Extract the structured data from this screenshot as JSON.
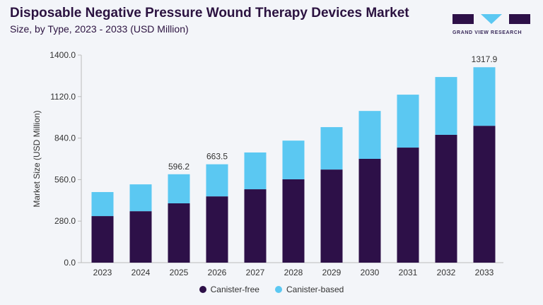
{
  "header": {
    "title": "Disposable Negative Pressure Wound Therapy Devices Market",
    "subtitle": "Size, by Type, 2023 - 2033 (USD Million)"
  },
  "logo": {
    "text": "GRAND VIEW RESEARCH"
  },
  "chart_data": {
    "type": "bar",
    "stacked": true,
    "title": "Disposable Negative Pressure Wound Therapy Devices Market",
    "subtitle": "Size, by Type, 2023 - 2033 (USD Million)",
    "xlabel": "",
    "ylabel": "Market Size (USD Million)",
    "ylim": [
      0,
      1400
    ],
    "yticks": [
      "0.0",
      "280.0",
      "560.0",
      "840.0",
      "1120.0",
      "1400.0"
    ],
    "categories": [
      "2023",
      "2024",
      "2025",
      "2026",
      "2027",
      "2028",
      "2029",
      "2030",
      "2031",
      "2032",
      "2033"
    ],
    "series": [
      {
        "name": "Canister-free",
        "color": "#2d1048",
        "values": [
          314,
          347,
          400,
          447,
          495,
          562,
          628,
          700,
          776,
          862,
          923
        ]
      },
      {
        "name": "Canister-based",
        "color": "#5bc8f2",
        "values": [
          162,
          181,
          196.2,
          216.5,
          248,
          261,
          286,
          323,
          357,
          390,
          394.9
        ]
      }
    ],
    "data_labels": {
      "2025": "596.2",
      "2026": "663.5",
      "2033": "1317.9"
    },
    "legend": "bottom",
    "grid": false
  }
}
